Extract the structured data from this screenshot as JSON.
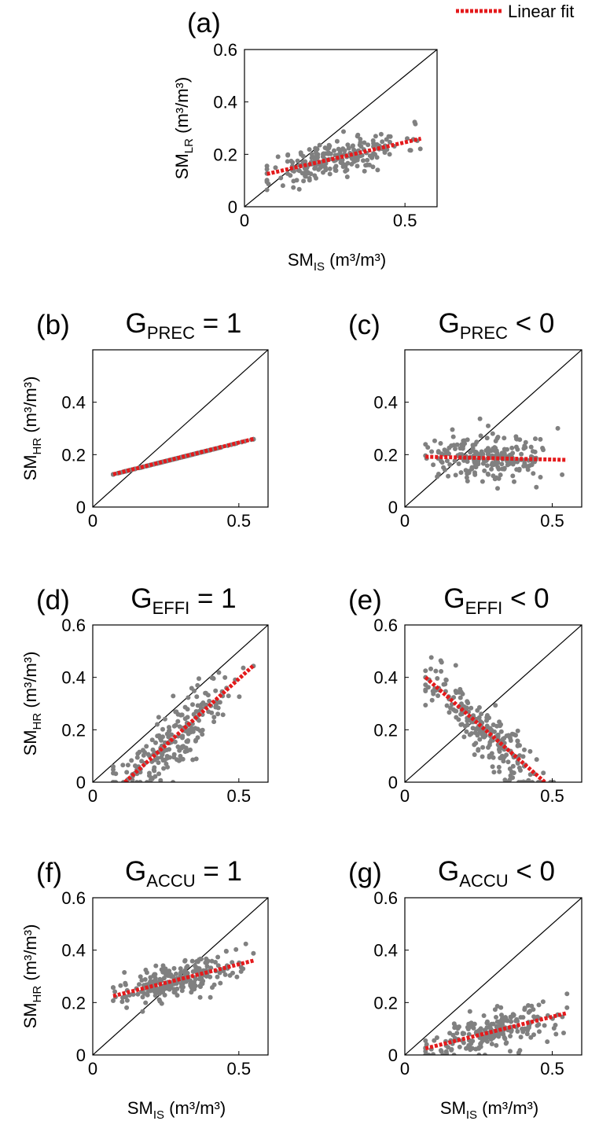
{
  "legend": {
    "label": "Linear fit",
    "color": "#e41a1c",
    "placement": "top-right"
  },
  "colors": {
    "points": "#808080",
    "fit": "#e41a1c",
    "identity": "#000000"
  },
  "chart_data": [
    {
      "id": "a",
      "type": "scatter",
      "panel_label": "(a)",
      "title_main": "",
      "title_sub": "",
      "title_rest": "",
      "ylabel_main": "SM",
      "ylabel_sub": "LR",
      "ylabel_unit": "(m³/m³)",
      "xlabel_main": "SM",
      "xlabel_sub": "IS",
      "xlabel_unit": "(m³/m³)",
      "xlim": [
        0,
        0.6
      ],
      "ylim": [
        0,
        0.6
      ],
      "xticks": [
        0,
        0.5
      ],
      "xtick_labels": [
        "0",
        "0.5"
      ],
      "yticks": [
        0,
        0.2,
        0.4,
        0.6
      ],
      "ytick_labels": [
        "0",
        "0.2",
        "0.4",
        "0.6"
      ],
      "fit": {
        "x": [
          0.07,
          0.55
        ],
        "y": [
          0.125,
          0.26
        ]
      },
      "scatter": {
        "n": 230,
        "x_range": [
          0.07,
          0.55
        ],
        "slope": 0.28,
        "intercept": 0.105,
        "noise": 0.035,
        "seed": 11
      }
    },
    {
      "id": "b",
      "type": "scatter",
      "panel_label": "(b)",
      "title_main": "G",
      "title_sub": "PREC",
      "title_rest": " = 1",
      "ylabel_main": "SM",
      "ylabel_sub": "HR",
      "ylabel_unit": "(m³/m³)",
      "xlabel_main": "",
      "xlabel_sub": "",
      "xlabel_unit": "",
      "xlim": [
        0,
        0.6
      ],
      "ylim": [
        0,
        0.6
      ],
      "xticks": [
        0,
        0.5
      ],
      "xtick_labels": [
        "0",
        "0.5"
      ],
      "yticks": [
        0,
        0.2,
        0.4
      ],
      "ytick_labels": [
        "0",
        "0.2",
        "0.4"
      ],
      "fit": {
        "x": [
          0.07,
          0.55
        ],
        "y": [
          0.125,
          0.26
        ]
      },
      "scatter": {
        "n": 230,
        "x_range": [
          0.07,
          0.55
        ],
        "slope": 0.28,
        "intercept": 0.105,
        "noise": 0.0,
        "seed": 12
      }
    },
    {
      "id": "c",
      "type": "scatter",
      "panel_label": "(c)",
      "title_main": "G",
      "title_sub": "PREC",
      "title_rest": " < 0",
      "ylabel_main": "",
      "ylabel_sub": "",
      "ylabel_unit": "",
      "xlabel_main": "",
      "xlabel_sub": "",
      "xlabel_unit": "",
      "xlim": [
        0,
        0.6
      ],
      "ylim": [
        0,
        0.6
      ],
      "xticks": [
        0,
        0.5
      ],
      "xtick_labels": [
        "0",
        "0.5"
      ],
      "yticks": [
        0,
        0.2,
        0.4
      ],
      "ytick_labels": [
        "0",
        "0.2",
        "0.4"
      ],
      "fit": {
        "x": [
          0.07,
          0.55
        ],
        "y": [
          0.192,
          0.18
        ]
      },
      "scatter": {
        "n": 230,
        "x_range": [
          0.07,
          0.55
        ],
        "slope": -0.025,
        "intercept": 0.194,
        "noise": 0.045,
        "seed": 13
      }
    },
    {
      "id": "d",
      "type": "scatter",
      "panel_label": "(d)",
      "title_main": "G",
      "title_sub": "EFFI",
      "title_rest": " = 1",
      "ylabel_main": "SM",
      "ylabel_sub": "HR",
      "ylabel_unit": "(m³/m³)",
      "xlabel_main": "",
      "xlabel_sub": "",
      "xlabel_unit": "",
      "xlim": [
        0,
        0.6
      ],
      "ylim": [
        0,
        0.6
      ],
      "xticks": [
        0,
        0.5
      ],
      "xtick_labels": [
        "0",
        "0.5"
      ],
      "yticks": [
        0,
        0.2,
        0.4,
        0.6
      ],
      "ytick_labels": [
        "0",
        "0.2",
        "0.4",
        "0.6"
      ],
      "fit": {
        "x": [
          0.11,
          0.55
        ],
        "y": [
          0.0,
          0.445
        ]
      },
      "scatter": {
        "n": 230,
        "x_range": [
          0.07,
          0.55
        ],
        "slope": 1.01,
        "intercept": -0.111,
        "noise": 0.06,
        "seed": 14
      }
    },
    {
      "id": "e",
      "type": "scatter",
      "panel_label": "(e)",
      "title_main": "G",
      "title_sub": "EFFI",
      "title_rest": " < 0",
      "ylabel_main": "",
      "ylabel_sub": "",
      "ylabel_unit": "",
      "xlabel_main": "",
      "xlabel_sub": "",
      "xlabel_unit": "",
      "xlim": [
        0,
        0.6
      ],
      "ylim": [
        0,
        0.6
      ],
      "xticks": [
        0,
        0.5
      ],
      "xtick_labels": [
        "0",
        "0.5"
      ],
      "yticks": [
        0,
        0.2,
        0.4,
        0.6
      ],
      "ytick_labels": [
        "0",
        "0.2",
        "0.4",
        "0.6"
      ],
      "fit": {
        "x": [
          0.07,
          0.475
        ],
        "y": [
          0.4,
          0.0
        ]
      },
      "scatter": {
        "n": 230,
        "x_range": [
          0.07,
          0.52
        ],
        "slope": -0.99,
        "intercept": 0.469,
        "noise": 0.05,
        "seed": 15
      }
    },
    {
      "id": "f",
      "type": "scatter",
      "panel_label": "(f)",
      "title_main": "G",
      "title_sub": "ACCU",
      "title_rest": " = 1",
      "ylabel_main": "SM",
      "ylabel_sub": "HR",
      "ylabel_unit": "(m³/m³)",
      "xlabel_main": "SM",
      "xlabel_sub": "IS",
      "xlabel_unit": "(m³/m³)",
      "xlim": [
        0,
        0.6
      ],
      "ylim": [
        0,
        0.6
      ],
      "xticks": [
        0,
        0.5
      ],
      "xtick_labels": [
        "0",
        "0.5"
      ],
      "yticks": [
        0,
        0.2,
        0.4,
        0.6
      ],
      "ytick_labels": [
        "0",
        "0.2",
        "0.4",
        "0.6"
      ],
      "fit": {
        "x": [
          0.07,
          0.55
        ],
        "y": [
          0.225,
          0.36
        ]
      },
      "scatter": {
        "n": 230,
        "x_range": [
          0.07,
          0.55
        ],
        "slope": 0.28,
        "intercept": 0.205,
        "noise": 0.035,
        "seed": 16
      }
    },
    {
      "id": "g",
      "type": "scatter",
      "panel_label": "(g)",
      "title_main": "G",
      "title_sub": "ACCU",
      "title_rest": " < 0",
      "ylabel_main": "",
      "ylabel_sub": "",
      "ylabel_unit": "",
      "xlabel_main": "SM",
      "xlabel_sub": "IS",
      "xlabel_unit": "(m³/m³)",
      "xlim": [
        0,
        0.6
      ],
      "ylim": [
        0,
        0.6
      ],
      "xticks": [
        0,
        0.5
      ],
      "xtick_labels": [
        "0",
        "0.5"
      ],
      "yticks": [
        0,
        0.2,
        0.4,
        0.6
      ],
      "ytick_labels": [
        "0",
        "0.2",
        "0.4",
        "0.6"
      ],
      "fit": {
        "x": [
          0.07,
          0.55
        ],
        "y": [
          0.025,
          0.16
        ]
      },
      "scatter": {
        "n": 230,
        "x_range": [
          0.07,
          0.55
        ],
        "slope": 0.28,
        "intercept": 0.005,
        "noise": 0.035,
        "seed": 17
      }
    }
  ]
}
